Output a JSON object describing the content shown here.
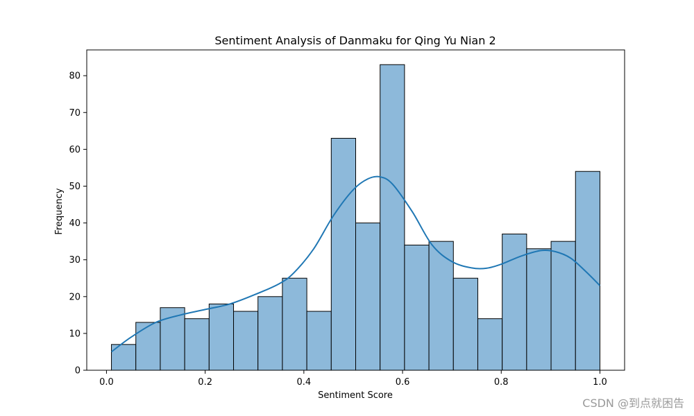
{
  "chart_data": {
    "type": "histogram",
    "title": "Sentiment Analysis of Danmaku for Qing Yu Nian 2",
    "xlabel": "Sentiment Score",
    "ylabel": "Frequency",
    "xlim": [
      -0.04,
      1.05
    ],
    "ylim": [
      0,
      87
    ],
    "xticks": [
      0.0,
      0.2,
      0.4,
      0.6,
      0.8,
      1.0
    ],
    "xtick_labels": [
      "0.0",
      "0.2",
      "0.4",
      "0.6",
      "0.8",
      "1.0"
    ],
    "yticks": [
      0,
      10,
      20,
      30,
      40,
      50,
      60,
      70,
      80
    ],
    "ytick_labels": [
      "0",
      "10",
      "20",
      "30",
      "40",
      "50",
      "60",
      "70",
      "80"
    ],
    "bins": [
      {
        "x0": 0.01,
        "x1": 0.0595,
        "count": 7
      },
      {
        "x0": 0.0595,
        "x1": 0.109,
        "count": 13
      },
      {
        "x0": 0.109,
        "x1": 0.1585,
        "count": 17
      },
      {
        "x0": 0.1585,
        "x1": 0.208,
        "count": 14
      },
      {
        "x0": 0.208,
        "x1": 0.2575,
        "count": 18
      },
      {
        "x0": 0.2575,
        "x1": 0.307,
        "count": 16
      },
      {
        "x0": 0.307,
        "x1": 0.3565,
        "count": 20
      },
      {
        "x0": 0.3565,
        "x1": 0.406,
        "count": 25
      },
      {
        "x0": 0.406,
        "x1": 0.4555,
        "count": 16
      },
      {
        "x0": 0.4555,
        "x1": 0.505,
        "count": 63
      },
      {
        "x0": 0.505,
        "x1": 0.5545,
        "count": 40
      },
      {
        "x0": 0.5545,
        "x1": 0.604,
        "count": 83
      },
      {
        "x0": 0.604,
        "x1": 0.6535,
        "count": 34
      },
      {
        "x0": 0.6535,
        "x1": 0.703,
        "count": 35
      },
      {
        "x0": 0.703,
        "x1": 0.7525,
        "count": 25
      },
      {
        "x0": 0.7525,
        "x1": 0.802,
        "count": 14
      },
      {
        "x0": 0.802,
        "x1": 0.8515,
        "count": 37
      },
      {
        "x0": 0.8515,
        "x1": 0.901,
        "count": 33
      },
      {
        "x0": 0.901,
        "x1": 0.9505,
        "count": 35
      },
      {
        "x0": 0.9505,
        "x1": 1.0,
        "count": 54
      }
    ],
    "kde": {
      "x": [
        0.01,
        0.05,
        0.1,
        0.15,
        0.2,
        0.25,
        0.3,
        0.35,
        0.38,
        0.42,
        0.46,
        0.5,
        0.53,
        0.555,
        0.58,
        0.62,
        0.66,
        0.7,
        0.74,
        0.77,
        0.8,
        0.84,
        0.88,
        0.91,
        0.94,
        0.97,
        1.0
      ],
      "y": [
        5,
        9,
        13,
        15,
        16.5,
        18,
        20.5,
        23.5,
        26.5,
        33,
        42,
        49,
        52,
        52.5,
        50.5,
        43,
        34,
        29.5,
        27.8,
        27.7,
        28.8,
        31,
        32.5,
        32.2,
        30.5,
        27,
        23
      ]
    },
    "bar_color": "#8db9da",
    "edge_color": "#000000",
    "line_color": "#1f77b4"
  },
  "watermark": "CSDN @到点就困告"
}
